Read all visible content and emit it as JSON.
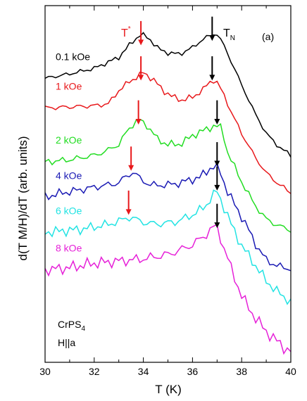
{
  "chart_data": {
    "type": "line",
    "title": "",
    "xlabel": "T (K)",
    "ylabel": "d(T M/H)/dT (arb. units)",
    "xlim": [
      30,
      40
    ],
    "xticks": [
      30,
      32,
      34,
      36,
      38,
      40
    ],
    "yticks_shown": false,
    "panel_label": "(a)",
    "tn_label": "T",
    "tn_sub": "N",
    "tstar_label": "T",
    "tstar_sup": "*",
    "sample_text": "CrPS",
    "sample_sub": "4",
    "field_text": "H||a",
    "series": [
      {
        "name": "0.1 kOe",
        "color": "#000000",
        "x": [
          30,
          31,
          32,
          33,
          33.5,
          33.9,
          34.2,
          34.6,
          35,
          35.5,
          36,
          36.4,
          36.8,
          37.0,
          37.3,
          37.6,
          38,
          38.5,
          39,
          39.5,
          40
        ],
        "y": [
          9.3,
          9.5,
          9.75,
          10.25,
          10.9,
          11.3,
          11.15,
          10.65,
          10.45,
          10.4,
          10.7,
          11.05,
          11.3,
          11.3,
          10.75,
          10.0,
          9.0,
          7.8,
          6.8,
          6.2,
          5.8
        ],
        "arrow_tn": 36.8,
        "arrow_tstar": 33.9,
        "tn_arrow_y": 12.1,
        "tstar_arrow_y": 11.9
      },
      {
        "name": "1 kOe",
        "color": "#e8181b",
        "x": [
          30,
          31,
          32,
          32.6,
          33,
          33.5,
          34,
          34.4,
          34.8,
          35.2,
          35.6,
          36,
          36.4,
          36.8,
          37.0,
          37.3,
          37.6,
          38,
          38.5,
          39,
          39.5,
          40
        ],
        "y": [
          7.95,
          8.0,
          8.05,
          8.15,
          8.75,
          9.2,
          9.55,
          9.25,
          8.75,
          8.45,
          8.3,
          8.45,
          8.75,
          9.25,
          9.1,
          8.5,
          7.7,
          6.8,
          5.8,
          5.0,
          4.5,
          4.1
        ],
        "arrow_tn": 36.8,
        "arrow_tstar": 33.9,
        "tn_arrow_y": 10.3,
        "tstar_arrow_y": 10.3
      },
      {
        "name": "2 kOe",
        "color": "#22dd22",
        "x": [
          30,
          30.5,
          31,
          31.5,
          32,
          32.5,
          33,
          33.4,
          33.8,
          34.2,
          34.6,
          35,
          35.5,
          36,
          36.5,
          36.9,
          37.2,
          37.4,
          37.7,
          38,
          38.5,
          39,
          39.5,
          40
        ],
        "y": [
          5.5,
          5.55,
          5.6,
          5.7,
          5.8,
          6.0,
          6.3,
          7.0,
          7.45,
          7.1,
          6.5,
          6.3,
          6.3,
          6.7,
          6.95,
          7.15,
          7.05,
          6.0,
          5.3,
          4.6,
          3.6,
          2.9,
          2.6,
          2.4
        ],
        "arrow_tn": 37.0,
        "arrow_tstar": 33.8,
        "tn_arrow_y": 8.3,
        "tstar_arrow_y": 8.3
      },
      {
        "name": "4 kOe",
        "color": "#1a1ab4",
        "x": [
          30,
          30.5,
          31,
          31.5,
          32,
          32.5,
          33,
          33.3,
          33.6,
          33.9,
          34.3,
          34.8,
          35.3,
          35.8,
          36.3,
          36.7,
          36.9,
          37.1,
          37.4,
          37.8,
          38.2,
          38.6,
          39,
          39.5,
          40
        ],
        "y": [
          3.9,
          4.05,
          4.15,
          4.25,
          4.35,
          4.45,
          4.55,
          4.85,
          5.05,
          4.7,
          4.45,
          4.45,
          4.5,
          4.65,
          4.8,
          5.2,
          5.3,
          5.15,
          4.2,
          3.4,
          2.6,
          1.7,
          1.05,
          0.75,
          0.65
        ],
        "arrow_tn": 37.0,
        "arrow_tstar": 33.5,
        "tn_arrow_y": 6.4,
        "tstar_arrow_y": 6.2
      },
      {
        "name": "6 kOe",
        "color": "#22e3e3",
        "x": [
          30,
          30.5,
          31,
          31.5,
          32,
          32.5,
          33,
          33.4,
          33.8,
          34.2,
          34.8,
          35.4,
          36,
          36.5,
          36.8,
          37.0,
          37.3,
          37.6,
          38,
          38.5,
          39,
          39.5,
          40
        ],
        "y": [
          2.3,
          2.35,
          2.4,
          2.45,
          2.55,
          2.65,
          2.8,
          3.0,
          2.85,
          2.7,
          2.7,
          2.8,
          3.1,
          3.45,
          3.95,
          4.15,
          3.4,
          2.6,
          1.7,
          0.9,
          0.1,
          -0.45,
          -0.85
        ],
        "arrow_tn": 37.0,
        "arrow_tstar": 33.4,
        "tn_arrow_y": 5.3,
        "tstar_arrow_y": 4.2
      },
      {
        "name": "8 kOe",
        "color": "#e620d8",
        "x": [
          30,
          30.5,
          31,
          31.5,
          32,
          32.5,
          33,
          33.5,
          34,
          34.5,
          35,
          35.5,
          36,
          36.5,
          36.8,
          37.0,
          37.3,
          37.6,
          38,
          38.5,
          39,
          39.5,
          39.8,
          40
        ],
        "y": [
          0.6,
          0.65,
          0.7,
          0.8,
          0.9,
          0.95,
          1.0,
          1.05,
          1.1,
          1.2,
          1.3,
          1.5,
          1.75,
          2.15,
          2.5,
          2.55,
          1.5,
          0.6,
          -0.6,
          -1.5,
          -2.2,
          -2.7,
          -3.0,
          -3.1
        ],
        "arrow_tn": 37.0,
        "tn_arrow_y": 3.6
      }
    ]
  }
}
